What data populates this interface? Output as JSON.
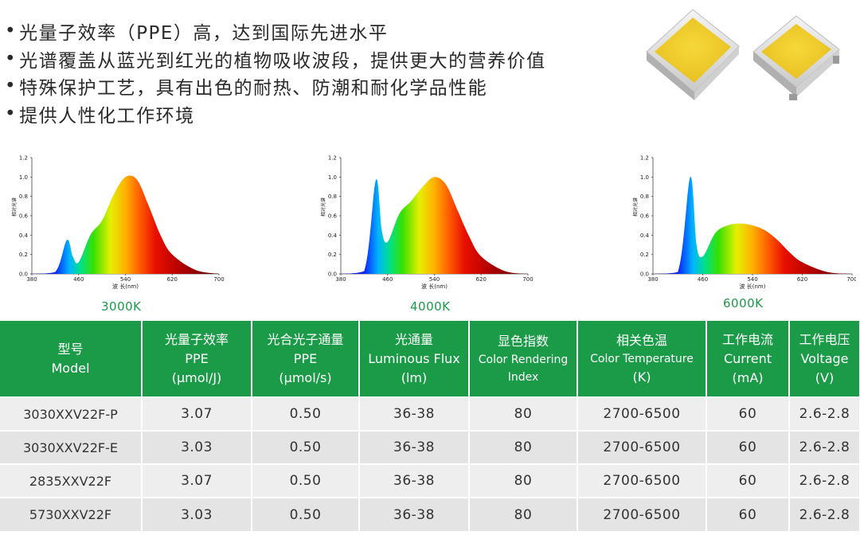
{
  "features": [
    "光量子效率（PPE）高，达到国际先进水平",
    "光谱覆盖从蓝光到红光的植物吸收波段，提供更大的营养价值",
    "特殊保护工艺，具有出色的耐热、防潮和耐化学品性能",
    "提供人性化工作环境"
  ],
  "bullet_symbol": "•",
  "spectra": [
    {
      "label": "3000K",
      "y_ticks": [
        "1.2",
        "1.0",
        "0.8",
        "0.6",
        "0.4",
        "0.2",
        "0.0"
      ],
      "x_ticks": [
        "380",
        "460",
        "540",
        "620",
        "700"
      ],
      "ylabel": "相对光谱",
      "xlabel": "波 长(nm)"
    },
    {
      "label": "4000K",
      "y_ticks": [
        "1.2",
        "1.0",
        "0.8",
        "0.6",
        "0.4",
        "0.2",
        "0.0"
      ],
      "x_ticks": [
        "380",
        "460",
        "540",
        "620",
        "700"
      ],
      "ylabel": "相对光谱",
      "xlabel": "波 长(nm)"
    },
    {
      "label": "6000K",
      "y_ticks": [
        "1.2",
        "1.0",
        "0.8",
        "0.6",
        "0.4",
        "0.2",
        "0.0"
      ],
      "x_ticks": [
        "380",
        "460",
        "540",
        "620",
        "700"
      ],
      "ylabel": "相对光谱",
      "xlabel": "波 长(nm)"
    }
  ],
  "chart_data": [
    {
      "type": "area",
      "title": "3000K",
      "x": [
        380,
        420,
        440,
        450,
        460,
        480,
        500,
        520,
        540,
        560,
        580,
        600,
        620,
        660,
        700
      ],
      "y": [
        0,
        0.02,
        0.35,
        0.18,
        0.12,
        0.4,
        0.55,
        0.82,
        1.0,
        0.97,
        0.7,
        0.4,
        0.2,
        0.04,
        0
      ],
      "ylim": [
        0,
        1.2
      ],
      "xlim": [
        380,
        700
      ]
    },
    {
      "type": "area",
      "title": "4000K",
      "x": [
        380,
        420,
        440,
        450,
        460,
        480,
        500,
        520,
        540,
        560,
        580,
        600,
        620,
        660,
        700
      ],
      "y": [
        0,
        0.03,
        0.97,
        0.45,
        0.33,
        0.62,
        0.75,
        0.9,
        1.0,
        0.92,
        0.65,
        0.38,
        0.18,
        0.03,
        0
      ],
      "ylim": [
        0,
        1.2
      ],
      "xlim": [
        380,
        700
      ]
    },
    {
      "type": "area",
      "title": "6000K",
      "x": [
        380,
        420,
        440,
        450,
        460,
        480,
        500,
        520,
        540,
        560,
        580,
        600,
        620,
        660,
        700
      ],
      "y": [
        0,
        0.02,
        1.0,
        0.3,
        0.18,
        0.42,
        0.5,
        0.52,
        0.5,
        0.45,
        0.35,
        0.22,
        0.12,
        0.02,
        0
      ],
      "ylim": [
        0,
        1.2
      ],
      "xlim": [
        380,
        700
      ]
    }
  ],
  "table": {
    "headers": [
      {
        "cn": "型号",
        "en": "Model"
      },
      {
        "cn": "光量子效率",
        "en": "PPE",
        "unit": "(μmol/J)"
      },
      {
        "cn": "光合光子通量",
        "en": "PPE",
        "unit": "(μmol/s)"
      },
      {
        "cn": "光通量",
        "en": "Luminous Flux",
        "unit": "(lm)"
      },
      {
        "cn": "显色指数",
        "en": "Color Rendering",
        "en2": "Index"
      },
      {
        "cn": "相关色温",
        "en": "Color Temperature",
        "unit": "(K)"
      },
      {
        "cn": "工作电流",
        "en": "Current",
        "unit": "(mA)"
      },
      {
        "cn": "工作电压",
        "en": "Voltage",
        "unit": "(V)"
      }
    ],
    "rows": [
      [
        "3030XXV22F-P",
        "3.07",
        "0.50",
        "36-38",
        "80",
        "2700-6500",
        "60",
        "2.6-2.8"
      ],
      [
        "3030XXV22F-E",
        "3.03",
        "0.50",
        "36-38",
        "80",
        "2700-6500",
        "60",
        "2.6-2.8"
      ],
      [
        "2835XXV22F",
        "3.07",
        "0.50",
        "36-38",
        "80",
        "2700-6500",
        "60",
        "2.6-2.8"
      ],
      [
        "5730XXV22F",
        "3.03",
        "0.50",
        "36-38",
        "80",
        "2700-6500",
        "60",
        "2.6-2.8"
      ]
    ]
  }
}
